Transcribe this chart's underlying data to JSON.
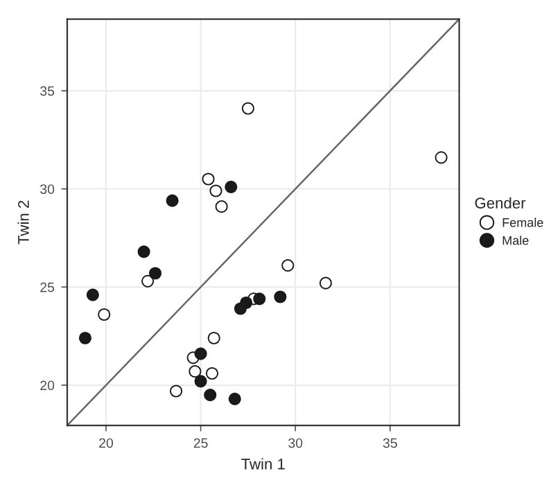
{
  "chart_data": {
    "type": "scatter",
    "xlabel": "Twin 1",
    "ylabel": "Twin 2",
    "legend_title": "Gender",
    "legend": "right",
    "grid": true,
    "xlim": [
      17.95,
      38.65
    ],
    "ylim": [
      17.95,
      38.65
    ],
    "xticks": [
      20,
      25,
      30,
      35
    ],
    "yticks": [
      20,
      25,
      30,
      35
    ],
    "series": [
      {
        "name": "Female",
        "color": "#ffffff",
        "marker": "circle",
        "x": [
          27.5,
          25.4,
          25.8,
          26.1,
          37.7,
          29.6,
          31.6,
          22.2,
          19.9,
          25.7,
          24.6,
          24.7,
          25.6,
          23.7,
          27.8
        ],
        "values": [
          34.1,
          30.5,
          29.9,
          29.1,
          31.6,
          26.1,
          25.2,
          25.3,
          23.6,
          22.4,
          21.4,
          20.7,
          20.6,
          19.7,
          24.4
        ]
      },
      {
        "name": "Male",
        "color": "#1a1a1a",
        "marker": "circle",
        "x": [
          23.5,
          26.6,
          22.0,
          22.6,
          19.3,
          18.9,
          25.0,
          25.0,
          25.5,
          26.8,
          27.1,
          27.4,
          28.1,
          29.2
        ],
        "values": [
          29.4,
          30.1,
          26.8,
          25.7,
          24.6,
          22.4,
          21.6,
          20.2,
          19.5,
          19.3,
          23.9,
          24.2,
          24.4,
          24.5
        ]
      },
      {
        "type": "line",
        "color": "#666666",
        "marker": "none",
        "x": [
          17.95,
          38.65
        ],
        "values": [
          17.95,
          38.65
        ]
      }
    ]
  }
}
